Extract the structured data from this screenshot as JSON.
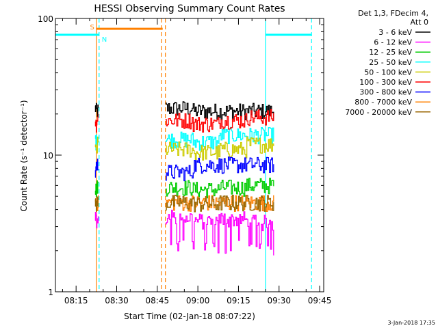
{
  "chart_data": {
    "type": "line",
    "title": "HESSI Observing Summary Count Rates",
    "xlabel": "Start Time (02-Jan-18 08:07:22)",
    "ylabel": "Count Rate (s⁻¹ detector⁻¹)",
    "yscale": "log",
    "ylim": [
      1,
      100
    ],
    "xlim": [
      "08:07:22",
      "09:46:30"
    ],
    "x_ticks": [
      "08:15",
      "08:30",
      "08:45",
      "09:00",
      "09:15",
      "09:30",
      "09:45"
    ],
    "y_ticks": [
      "1",
      "10",
      "100"
    ],
    "legend_header": [
      "Det 1,3, FDecim 4,",
      "Att 0"
    ],
    "legend_placement": "right",
    "footer_date": "3-Jan-2018 17:35",
    "segments": [
      {
        "start": "08:22:00",
        "end": "08:23:10"
      },
      {
        "start": "08:48:00",
        "end": "09:28:00"
      }
    ],
    "series": [
      {
        "name": "3 - 6 keV",
        "color": "#000000",
        "values": [
          22,
          21,
          21,
          21
        ]
      },
      {
        "name": "6 - 12 keV",
        "color": "#ff00ff",
        "values": [
          3.5,
          3.3,
          3.4,
          3.2
        ]
      },
      {
        "name": "12 - 25 keV",
        "color": "#00cc00",
        "values": [
          5.8,
          5.6,
          5.8,
          6.0
        ]
      },
      {
        "name": "25 - 50 keV",
        "color": "#00ffff",
        "values": [
          13,
          12.5,
          14,
          14
        ]
      },
      {
        "name": "50 - 100 keV",
        "color": "#cccc00",
        "values": [
          11,
          10.5,
          11,
          12
        ]
      },
      {
        "name": "100 - 300 keV",
        "color": "#ff0000",
        "values": [
          18,
          17,
          18,
          19
        ]
      },
      {
        "name": "300 - 800 keV",
        "color": "#0000ff",
        "values": [
          7.5,
          8.5,
          8.5,
          8.5
        ]
      },
      {
        "name": "800 - 7000 keV",
        "color": "#ff8000",
        "values": [
          4.5,
          4.5,
          4.5,
          4.5
        ]
      },
      {
        "name": "7000 - 20000 keV",
        "color": "#996600",
        "values": [
          4.5,
          4.4,
          4.5,
          4.5
        ]
      }
    ],
    "flags": [
      {
        "label": "S",
        "color": "#ff8000",
        "start": "08:22:30",
        "end": "08:47:00",
        "y": 84
      },
      {
        "label": "N",
        "color": "#00ffff",
        "start": "08:07:22",
        "end": "08:23:30",
        "y": 76
      },
      {
        "label": "",
        "color": "#00ffff",
        "start": "09:25:00",
        "end": "09:42:00",
        "y": 76
      }
    ],
    "vlines": [
      {
        "time": "08:22:30",
        "color": "#ff8000",
        "style": "solid"
      },
      {
        "time": "08:23:30",
        "color": "#00ffff",
        "style": "dashed"
      },
      {
        "time": "08:46:30",
        "color": "#ff8000",
        "style": "dashed"
      },
      {
        "time": "08:48:00",
        "color": "#ff8000",
        "style": "dashed"
      },
      {
        "time": "09:25:00",
        "color": "#00ffff",
        "style": "solid"
      },
      {
        "time": "09:42:00",
        "color": "#00ffff",
        "style": "dashed"
      }
    ]
  }
}
